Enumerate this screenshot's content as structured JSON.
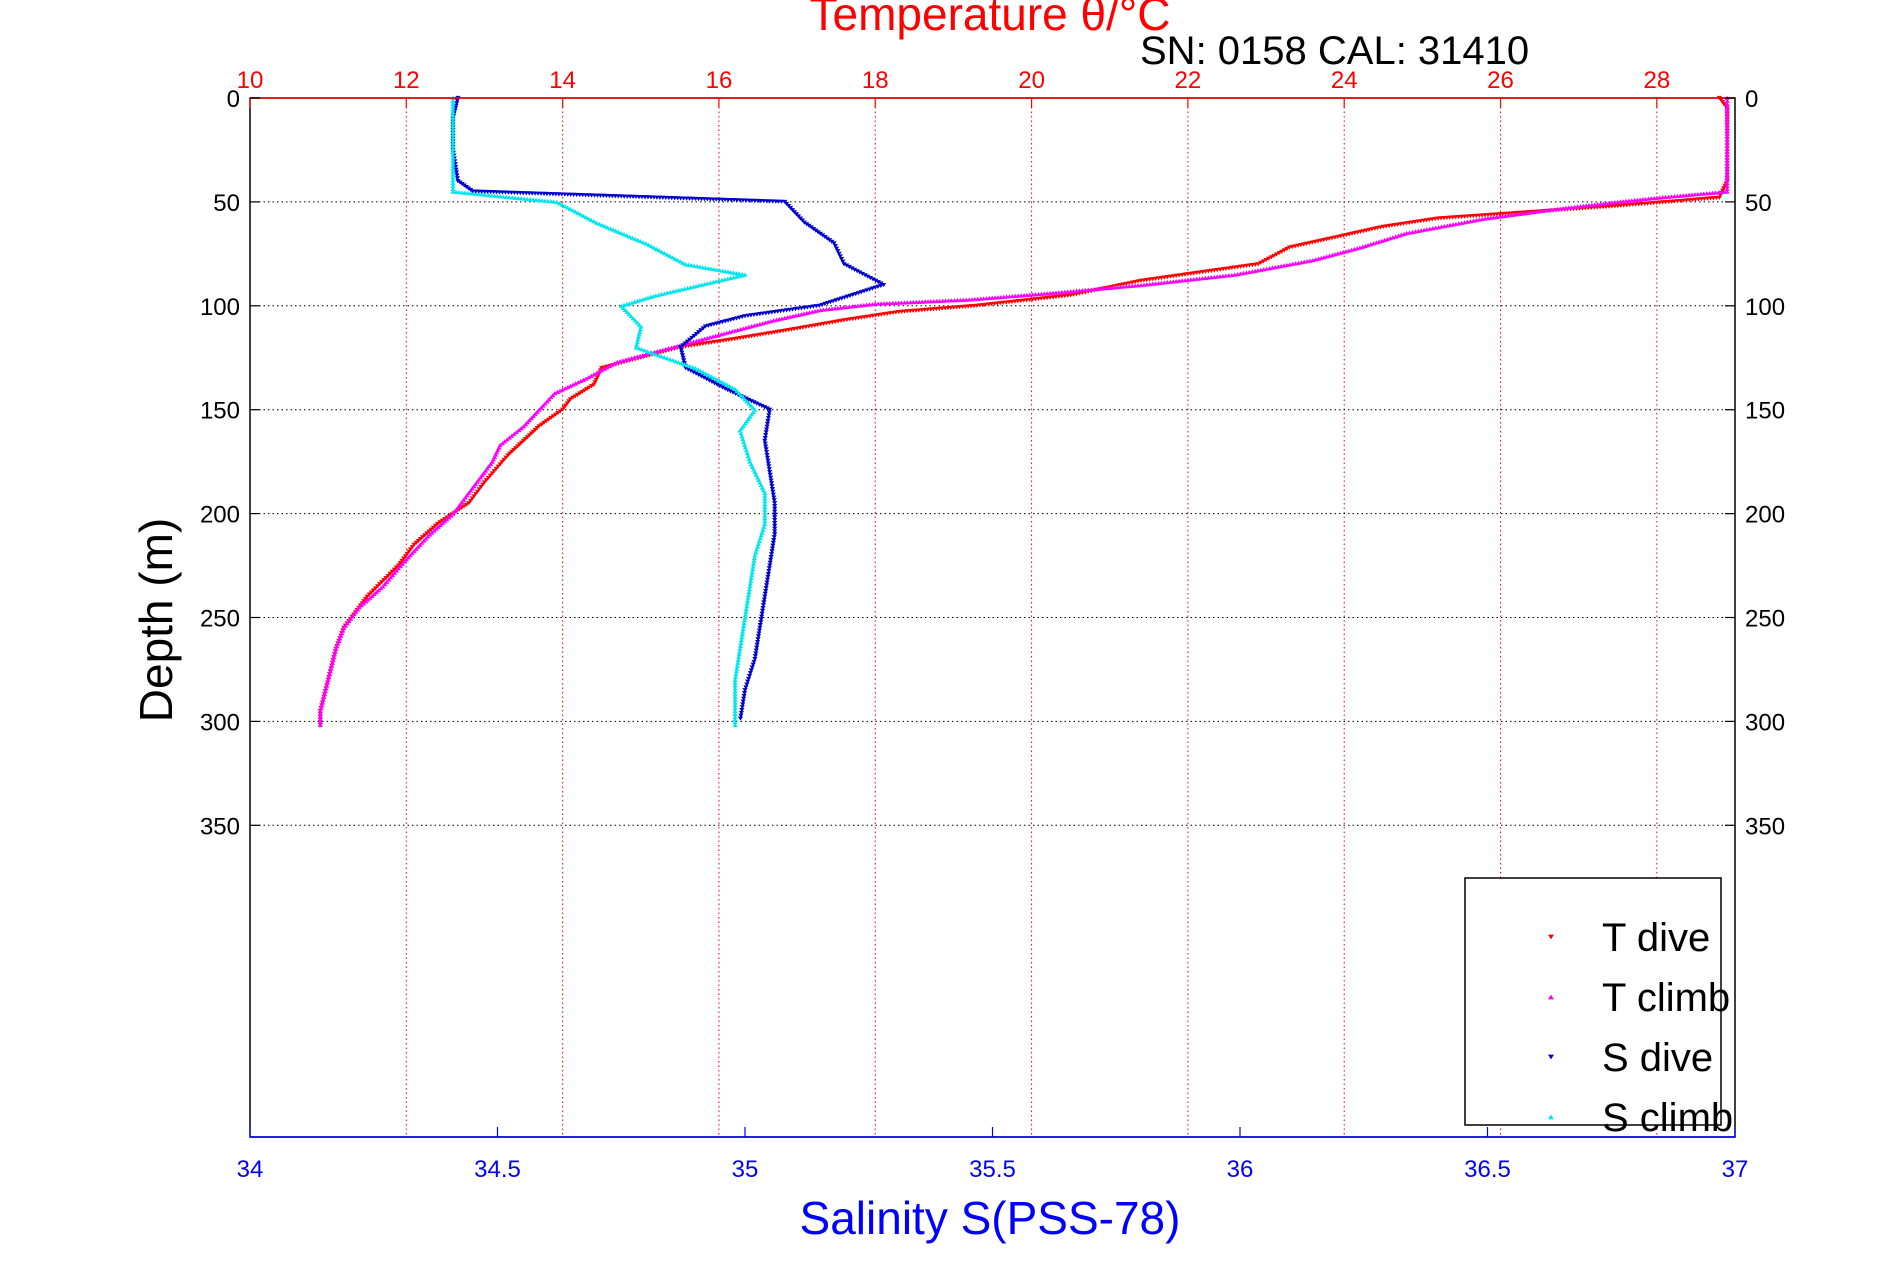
{
  "chart_data": {
    "type": "scatter",
    "title_top": "Temperature θ/°C",
    "annotation": "SN: 0158  CAL: 31410",
    "xlabel_bottom": "Salinity S(PSS-78)",
    "ylabel": "Depth (m)",
    "axes": {
      "temperature": {
        "range": [
          10,
          29
        ],
        "ticks": [
          "10",
          "12",
          "14",
          "16",
          "18",
          "20",
          "22",
          "24",
          "26",
          "28"
        ],
        "color": "#ff0000",
        "position": "top"
      },
      "salinity": {
        "range": [
          34,
          37
        ],
        "ticks": [
          "34",
          "34.5",
          "35",
          "35.5",
          "36",
          "36.5",
          "37"
        ],
        "color": "#0000ff",
        "position": "bottom"
      },
      "depth": {
        "range": [
          0,
          500
        ],
        "reversed": true,
        "ticks": [
          "0",
          "50",
          "100",
          "150",
          "200",
          "250",
          "300",
          "350"
        ]
      }
    },
    "grid": true,
    "legend": {
      "placement": "bottom-right",
      "entries": [
        {
          "label": "T dive",
          "color": "#ff0000",
          "marker": "triangle-down"
        },
        {
          "label": "T climb",
          "color": "#ff00ff",
          "marker": "triangle-up"
        },
        {
          "label": "S dive",
          "color": "#0000cc",
          "marker": "triangle-down"
        },
        {
          "label": "S climb",
          "color": "#00e5ee",
          "marker": "triangle-up"
        }
      ]
    },
    "series": [
      {
        "name": "T dive",
        "axis": "temperature",
        "points": [
          [
            28.8,
            0
          ],
          [
            28.9,
            5
          ],
          [
            28.9,
            20
          ],
          [
            28.9,
            40
          ],
          [
            28.8,
            48
          ],
          [
            27.5,
            52
          ],
          [
            25.2,
            58
          ],
          [
            24.5,
            62
          ],
          [
            23.3,
            72
          ],
          [
            22.9,
            80
          ],
          [
            21.4,
            88
          ],
          [
            20.5,
            95
          ],
          [
            19.3,
            100
          ],
          [
            18.3,
            103
          ],
          [
            17.6,
            107
          ],
          [
            17.0,
            111
          ],
          [
            16.2,
            116
          ],
          [
            15.5,
            120
          ],
          [
            15.0,
            125
          ],
          [
            14.5,
            130
          ],
          [
            14.4,
            138
          ],
          [
            14.1,
            145
          ],
          [
            14.0,
            150
          ],
          [
            13.7,
            158
          ],
          [
            13.5,
            165
          ],
          [
            13.3,
            172
          ],
          [
            13.0,
            185
          ],
          [
            12.8,
            195
          ],
          [
            12.4,
            205
          ],
          [
            12.1,
            215
          ],
          [
            11.9,
            225
          ],
          [
            11.5,
            240
          ],
          [
            11.2,
            255
          ],
          [
            11.1,
            265
          ],
          [
            11.0,
            280
          ],
          [
            10.9,
            295
          ],
          [
            10.9,
            303
          ]
        ]
      },
      {
        "name": "T climb",
        "axis": "temperature",
        "points": [
          [
            28.9,
            0
          ],
          [
            28.9,
            10
          ],
          [
            28.9,
            30
          ],
          [
            28.9,
            45
          ],
          [
            28.0,
            48
          ],
          [
            27.5,
            50
          ],
          [
            26.8,
            53
          ],
          [
            25.8,
            58
          ],
          [
            24.8,
            65
          ],
          [
            24.2,
            72
          ],
          [
            23.6,
            78
          ],
          [
            22.6,
            85
          ],
          [
            21.4,
            90
          ],
          [
            20.2,
            94
          ],
          [
            19.2,
            97
          ],
          [
            18.0,
            99
          ],
          [
            17.3,
            102
          ],
          [
            16.7,
            107
          ],
          [
            16.1,
            113
          ],
          [
            15.5,
            119
          ],
          [
            14.7,
            127
          ],
          [
            14.3,
            135
          ],
          [
            13.9,
            142
          ],
          [
            13.7,
            150
          ],
          [
            13.5,
            158
          ],
          [
            13.2,
            167
          ],
          [
            13.1,
            175
          ],
          [
            12.8,
            190
          ],
          [
            12.6,
            200
          ],
          [
            12.3,
            210
          ],
          [
            12.0,
            222
          ],
          [
            11.7,
            235
          ],
          [
            11.4,
            245
          ],
          [
            11.2,
            255
          ],
          [
            11.1,
            265
          ],
          [
            11.0,
            280
          ],
          [
            10.9,
            295
          ],
          [
            10.9,
            303
          ]
        ]
      },
      {
        "name": "S dive",
        "axis": "salinity",
        "points": [
          [
            34.42,
            0
          ],
          [
            34.41,
            10
          ],
          [
            34.41,
            25
          ],
          [
            34.42,
            40
          ],
          [
            34.45,
            45
          ],
          [
            35.08,
            50
          ],
          [
            35.12,
            60
          ],
          [
            35.18,
            70
          ],
          [
            35.2,
            80
          ],
          [
            35.28,
            90
          ],
          [
            35.15,
            100
          ],
          [
            35.0,
            105
          ],
          [
            34.92,
            110
          ],
          [
            34.87,
            120
          ],
          [
            34.88,
            130
          ],
          [
            34.96,
            140
          ],
          [
            35.05,
            150
          ],
          [
            35.04,
            165
          ],
          [
            35.05,
            180
          ],
          [
            35.06,
            195
          ],
          [
            35.06,
            210
          ],
          [
            35.05,
            225
          ],
          [
            35.04,
            240
          ],
          [
            35.03,
            255
          ],
          [
            35.02,
            270
          ],
          [
            35.0,
            285
          ],
          [
            34.99,
            300
          ]
        ]
      },
      {
        "name": "S climb",
        "axis": "salinity",
        "points": [
          [
            34.41,
            0
          ],
          [
            34.41,
            15
          ],
          [
            34.41,
            30
          ],
          [
            34.41,
            45
          ],
          [
            34.62,
            50
          ],
          [
            34.7,
            60
          ],
          [
            34.8,
            70
          ],
          [
            34.88,
            80
          ],
          [
            35.0,
            85
          ],
          [
            34.82,
            95
          ],
          [
            34.75,
            100
          ],
          [
            34.79,
            110
          ],
          [
            34.78,
            120
          ],
          [
            34.9,
            130
          ],
          [
            34.98,
            140
          ],
          [
            35.02,
            150
          ],
          [
            34.99,
            160
          ],
          [
            35.01,
            175
          ],
          [
            35.04,
            190
          ],
          [
            35.04,
            205
          ],
          [
            35.02,
            220
          ],
          [
            35.01,
            235
          ],
          [
            35.0,
            250
          ],
          [
            34.99,
            265
          ],
          [
            34.98,
            280
          ],
          [
            34.98,
            295
          ],
          [
            34.98,
            303
          ]
        ]
      }
    ]
  }
}
